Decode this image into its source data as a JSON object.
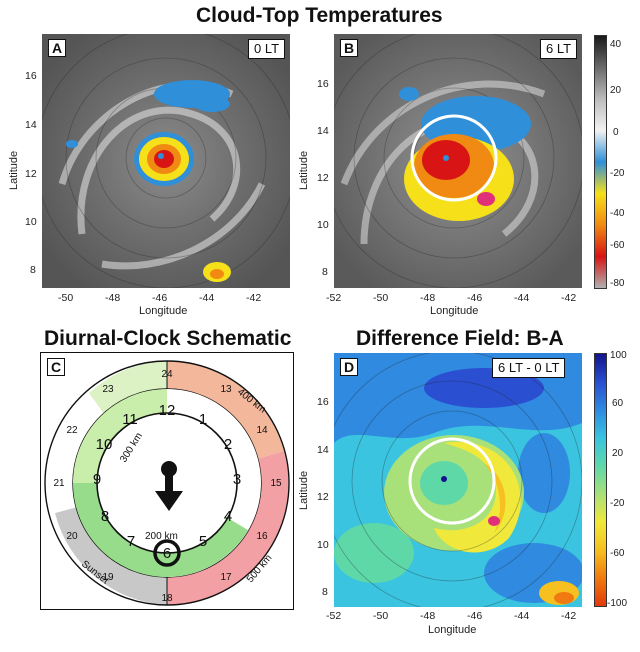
{
  "titles": {
    "top": "Cloud-Top Temperatures",
    "c": "Diurnal-Clock Schematic",
    "d": "Difference Field: B-A"
  },
  "panels": {
    "a": {
      "label": "A",
      "time": "0 LT"
    },
    "b": {
      "label": "B",
      "time": "6 LT"
    },
    "c": {
      "label": "C"
    },
    "d": {
      "label": "D",
      "time": "6 LT - 0 LT"
    }
  },
  "axes": {
    "xlabel": "Longitude",
    "ylabel": "Latitude",
    "a_xticks": [
      "-50",
      "-48",
      "-46",
      "-44",
      "-42"
    ],
    "a_yticks": [
      "16",
      "14",
      "12",
      "10",
      "8"
    ],
    "b_xticks": [
      "-52",
      "-50",
      "-48",
      "-46",
      "-44",
      "-42"
    ],
    "b_yticks": [
      "16",
      "14",
      "12",
      "10",
      "8"
    ],
    "d_xticks": [
      "-52",
      "-50",
      "-48",
      "-46",
      "-44",
      "-42"
    ],
    "d_yticks": [
      "16",
      "14",
      "12",
      "10",
      "8"
    ]
  },
  "colorbar_temp": {
    "ticks": [
      "40",
      "20",
      "0",
      "-20",
      "-40",
      "-60",
      "-80"
    ],
    "colors": [
      "#1a1a1a",
      "#6a6a6a",
      "#bcbcbc",
      "#f2f2f2",
      "#2f8fd8",
      "#f6e01a",
      "#f08a12",
      "#d81414",
      "#b0b0b0"
    ]
  },
  "colorbar_diff": {
    "ticks": [
      "100",
      "60",
      "20",
      "-20",
      "-60",
      "-100"
    ],
    "colors": [
      "#13148c",
      "#2a4fd0",
      "#2f8ae0",
      "#3ac4e0",
      "#5fd8a8",
      "#a8e07a",
      "#f0e83a",
      "#f5c020",
      "#f07a10",
      "#e03a08"
    ]
  },
  "clock": {
    "inner_hours": [
      "12",
      "1",
      "2",
      "3",
      "4",
      "5",
      "6",
      "7",
      "8",
      "9",
      "10",
      "11"
    ],
    "outer_hours": [
      "24",
      "13",
      "14",
      "15",
      "16",
      "17",
      "18",
      "19",
      "20",
      "21",
      "22",
      "23"
    ],
    "labels": {
      "km300": "300 km",
      "km200": "200 km",
      "km400": "400 km",
      "km500": "500 km",
      "sunset": "Sunset"
    },
    "colors": {
      "inner_green_light": "#c9eeab",
      "inner_green": "#97dc8a",
      "outer_orange": "#f3b79c",
      "outer_red": "#f3a0a4",
      "outer_grey": "#c8c8c8",
      "outer_lightgreen": "#dcf2c4"
    }
  }
}
